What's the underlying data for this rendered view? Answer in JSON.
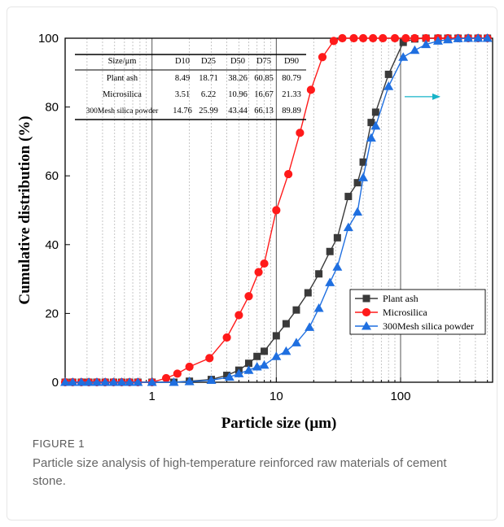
{
  "figure": {
    "label": "FIGURE 1",
    "caption": "Particle size analysis of high-temperature reinforced raw materials of cement stone."
  },
  "chart_data": {
    "type": "line",
    "xlabel": "Particle size (μm)",
    "ylabel": "Cumulative distribution (%)",
    "xscale": "log",
    "xlim": [
      0.2,
      550
    ],
    "ylim": [
      0,
      100
    ],
    "x_ticks": [
      1,
      10,
      100
    ],
    "y_ticks": [
      0,
      20,
      40,
      60,
      80,
      100
    ],
    "grid": "vertical-minor-dotted",
    "legend_position": "bottom-right",
    "colors": {
      "plant_ash": "#3a3a3a",
      "microsilica": "#ff1a1a",
      "silica": "#1f6fe0",
      "arrow": "#17b3c8"
    },
    "series": [
      {
        "name": "Plant ash",
        "marker": "square",
        "points": [
          [
            0.2,
            0
          ],
          [
            0.23,
            0
          ],
          [
            0.27,
            0
          ],
          [
            0.31,
            0
          ],
          [
            0.36,
            0
          ],
          [
            0.42,
            0
          ],
          [
            0.49,
            0
          ],
          [
            0.57,
            0
          ],
          [
            0.66,
            0
          ],
          [
            0.77,
            0
          ],
          [
            1.0,
            0
          ],
          [
            1.5,
            0
          ],
          [
            2.0,
            0.3
          ],
          [
            3.0,
            0.8
          ],
          [
            4.0,
            2.0
          ],
          [
            5.0,
            3.5
          ],
          [
            6.0,
            5.5
          ],
          [
            7.0,
            7.5
          ],
          [
            8.0,
            9.0
          ],
          [
            10.0,
            13.5
          ],
          [
            12.0,
            17.0
          ],
          [
            14.5,
            21.0
          ],
          [
            18.0,
            26.0
          ],
          [
            22.0,
            31.5
          ],
          [
            27.0,
            38.0
          ],
          [
            31.0,
            42.0
          ],
          [
            38.0,
            54.0
          ],
          [
            45.0,
            58.0
          ],
          [
            50.0,
            64.0
          ],
          [
            58.0,
            75.5
          ],
          [
            63.0,
            78.5
          ],
          [
            80.0,
            89.5
          ],
          [
            105.0,
            98.8
          ],
          [
            130.0,
            99.8
          ],
          [
            160.0,
            100
          ],
          [
            200.0,
            100
          ],
          [
            240.0,
            100
          ],
          [
            290.0,
            100
          ],
          [
            350.0,
            100
          ],
          [
            420.0,
            100
          ],
          [
            500.0,
            100
          ]
        ]
      },
      {
        "name": "Microsilica",
        "marker": "circle",
        "points": [
          [
            0.2,
            0
          ],
          [
            0.23,
            0
          ],
          [
            0.27,
            0
          ],
          [
            0.31,
            0
          ],
          [
            0.36,
            0
          ],
          [
            0.42,
            0
          ],
          [
            0.49,
            0
          ],
          [
            0.57,
            0
          ],
          [
            0.66,
            0
          ],
          [
            0.77,
            0
          ],
          [
            1.0,
            0
          ],
          [
            1.3,
            1.2
          ],
          [
            1.6,
            2.5
          ],
          [
            2.0,
            4.5
          ],
          [
            2.9,
            7.0
          ],
          [
            4.0,
            13.0
          ],
          [
            5.0,
            19.5
          ],
          [
            6.0,
            25.0
          ],
          [
            7.2,
            32.0
          ],
          [
            8.0,
            34.5
          ],
          [
            10.0,
            50.0
          ],
          [
            12.5,
            60.5
          ],
          [
            15.5,
            72.5
          ],
          [
            19.0,
            85.0
          ],
          [
            23.5,
            94.5
          ],
          [
            29.0,
            99.2
          ],
          [
            34.0,
            100
          ],
          [
            42.0,
            100
          ],
          [
            50.0,
            100
          ],
          [
            60.0,
            100
          ],
          [
            72.0,
            100
          ],
          [
            90.0,
            100
          ],
          [
            110.0,
            100
          ],
          [
            130.0,
            100
          ],
          [
            160.0,
            100
          ],
          [
            200.0,
            100
          ],
          [
            240.0,
            100
          ],
          [
            290.0,
            100
          ],
          [
            350.0,
            100
          ],
          [
            420.0,
            100
          ],
          [
            500.0,
            100
          ]
        ]
      },
      {
        "name": "300Mesh silica powder",
        "marker": "triangle",
        "points": [
          [
            0.2,
            0
          ],
          [
            0.23,
            0
          ],
          [
            0.27,
            0
          ],
          [
            0.31,
            0
          ],
          [
            0.36,
            0
          ],
          [
            0.42,
            0
          ],
          [
            0.49,
            0
          ],
          [
            0.57,
            0
          ],
          [
            0.66,
            0
          ],
          [
            0.77,
            0
          ],
          [
            1.0,
            0
          ],
          [
            1.5,
            0
          ],
          [
            2.0,
            0.2
          ],
          [
            3.0,
            0.6
          ],
          [
            4.2,
            1.5
          ],
          [
            5.0,
            2.5
          ],
          [
            6.0,
            3.5
          ],
          [
            7.0,
            4.5
          ],
          [
            8.0,
            5.0
          ],
          [
            10.0,
            7.5
          ],
          [
            12.0,
            9.0
          ],
          [
            14.5,
            11.5
          ],
          [
            18.5,
            16.0
          ],
          [
            22.0,
            21.5
          ],
          [
            27.0,
            29.0
          ],
          [
            31.0,
            33.5
          ],
          [
            38.0,
            45.0
          ],
          [
            45.0,
            49.5
          ],
          [
            50.0,
            59.5
          ],
          [
            58.0,
            71.0
          ],
          [
            63.0,
            74.5
          ],
          [
            80.0,
            86.0
          ],
          [
            105.0,
            94.5
          ],
          [
            130.0,
            96.5
          ],
          [
            160.0,
            98.2
          ],
          [
            200.0,
            99.2
          ],
          [
            240.0,
            99.6
          ],
          [
            290.0,
            99.9
          ],
          [
            350.0,
            100
          ],
          [
            420.0,
            100
          ],
          [
            500.0,
            100
          ]
        ]
      }
    ],
    "table": {
      "headers": [
        "Size/μm",
        "D10",
        "D25",
        "D50",
        "D75",
        "D90"
      ],
      "rows": [
        [
          "Plant ash",
          "8.49",
          "18.71",
          "38.26",
          "60.85",
          "80.79"
        ],
        [
          "Microsilica",
          "3.51",
          "6.22",
          "10.96",
          "16.67",
          "21.33"
        ],
        [
          "300Mesh silica powder",
          "14.76",
          "25.99",
          "43.44",
          "66.13",
          "89.89"
        ]
      ]
    }
  }
}
